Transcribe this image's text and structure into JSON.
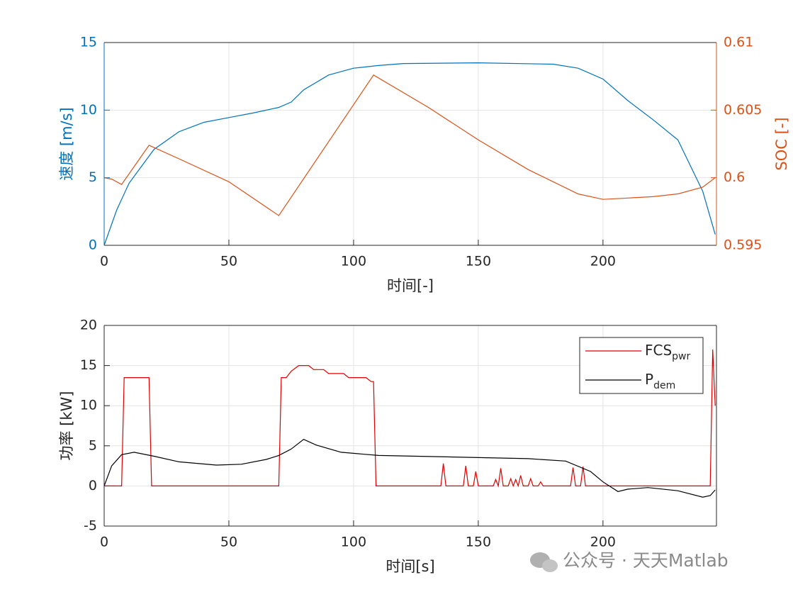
{
  "chart_data": [
    {
      "type": "line",
      "x_label": "时间[-]",
      "y_label": "速度 [m/s]",
      "y2_label": "SOC [-]",
      "xlim": [
        0,
        245.5
      ],
      "xticks": [
        0,
        50,
        100,
        150,
        200
      ],
      "ylim": [
        0,
        15
      ],
      "yticks": [
        0,
        5,
        10,
        15
      ],
      "y2lim": [
        0.595,
        0.61
      ],
      "y2ticks": [
        0.595,
        {
          "value": 0.6,
          "label": "0.6"
        },
        0.605,
        0.61
      ],
      "grid": true,
      "series": [
        {
          "color": "#0072bd",
          "x": [
            0,
            5,
            10,
            20,
            30,
            40,
            50,
            60,
            70,
            75,
            80,
            90,
            100,
            110,
            120,
            150,
            180,
            190,
            200,
            210,
            220,
            230,
            240,
            245
          ],
          "values": [
            0,
            2.6,
            4.6,
            7.1,
            8.4,
            9.1,
            9.45,
            9.8,
            10.2,
            10.6,
            11.5,
            12.6,
            13.1,
            13.3,
            13.45,
            13.5,
            13.4,
            13.1,
            12.3,
            10.7,
            9.3,
            7.8,
            4.0,
            0.8
          ]
        },
        {
          "color": "#d95319",
          "axis": "y2",
          "x": [
            0,
            3,
            7,
            18,
            30,
            50,
            70,
            108,
            130,
            150,
            170,
            190,
            200,
            210,
            220,
            230,
            240,
            245
          ],
          "values": [
            0.6,
            0.5999,
            0.5995,
            0.6024,
            0.6014,
            0.5997,
            0.5972,
            0.6076,
            0.6052,
            0.6028,
            0.6006,
            0.5988,
            0.5984,
            0.5985,
            0.5986,
            0.5988,
            0.5993,
            0.6
          ]
        }
      ]
    },
    {
      "type": "line",
      "x_label": "时间[s]",
      "y_label": "功率 [kW]",
      "xlim": [
        0,
        245.5
      ],
      "xticks": [
        0,
        50,
        100,
        150,
        200
      ],
      "ylim": [
        -5,
        20
      ],
      "yticks": [
        -5,
        0,
        5,
        10,
        15,
        20
      ],
      "grid": true,
      "legend": "northeast",
      "series": [
        {
          "name": "FCS",
          "subscript": "pwr",
          "color": "#e00000",
          "x": [
            0,
            7,
            8,
            18,
            19,
            70,
            71,
            73,
            75,
            78,
            82,
            84,
            88,
            90,
            96,
            98,
            105,
            107,
            108,
            109,
            135,
            136,
            137,
            144,
            145,
            146,
            148,
            149,
            150,
            156,
            157,
            158,
            159,
            160,
            162,
            163,
            164,
            165,
            166,
            167,
            168,
            170,
            171,
            172,
            174,
            175,
            176,
            187,
            188,
            189,
            191,
            192,
            193,
            243,
            244,
            245
          ],
          "values": [
            0,
            0,
            13.5,
            13.5,
            0,
            0,
            13.5,
            13.5,
            14.3,
            15,
            15,
            14.5,
            14.5,
            14,
            14,
            13.5,
            13.5,
            13,
            13,
            0,
            0,
            2.8,
            0,
            0,
            2.5,
            0,
            0,
            1.8,
            0,
            0,
            0.8,
            0,
            2.2,
            0,
            0,
            0.9,
            0,
            0.8,
            0,
            1.3,
            0,
            0,
            0.9,
            0,
            0,
            0.5,
            0,
            0,
            2.3,
            0,
            0,
            2.4,
            0,
            0,
            17,
            10
          ]
        },
        {
          "name": "P",
          "subscript": "dem",
          "color": "#000000",
          "x": [
            0,
            3,
            7,
            12,
            20,
            30,
            45,
            55,
            65,
            70,
            75,
            80,
            85,
            95,
            110,
            140,
            170,
            185,
            195,
            200,
            206,
            210,
            218,
            230,
            240,
            243,
            245
          ],
          "values": [
            0,
            2.5,
            3.9,
            4.2,
            3.7,
            3.0,
            2.6,
            2.7,
            3.3,
            3.8,
            4.6,
            5.8,
            5.1,
            4.2,
            3.8,
            3.6,
            3.4,
            3.1,
            1.8,
            0.5,
            -0.7,
            -0.4,
            -0.2,
            -0.6,
            -1.4,
            -1.2,
            -0.5
          ]
        }
      ]
    }
  ],
  "watermark": "公众号 · 天天Matlab"
}
